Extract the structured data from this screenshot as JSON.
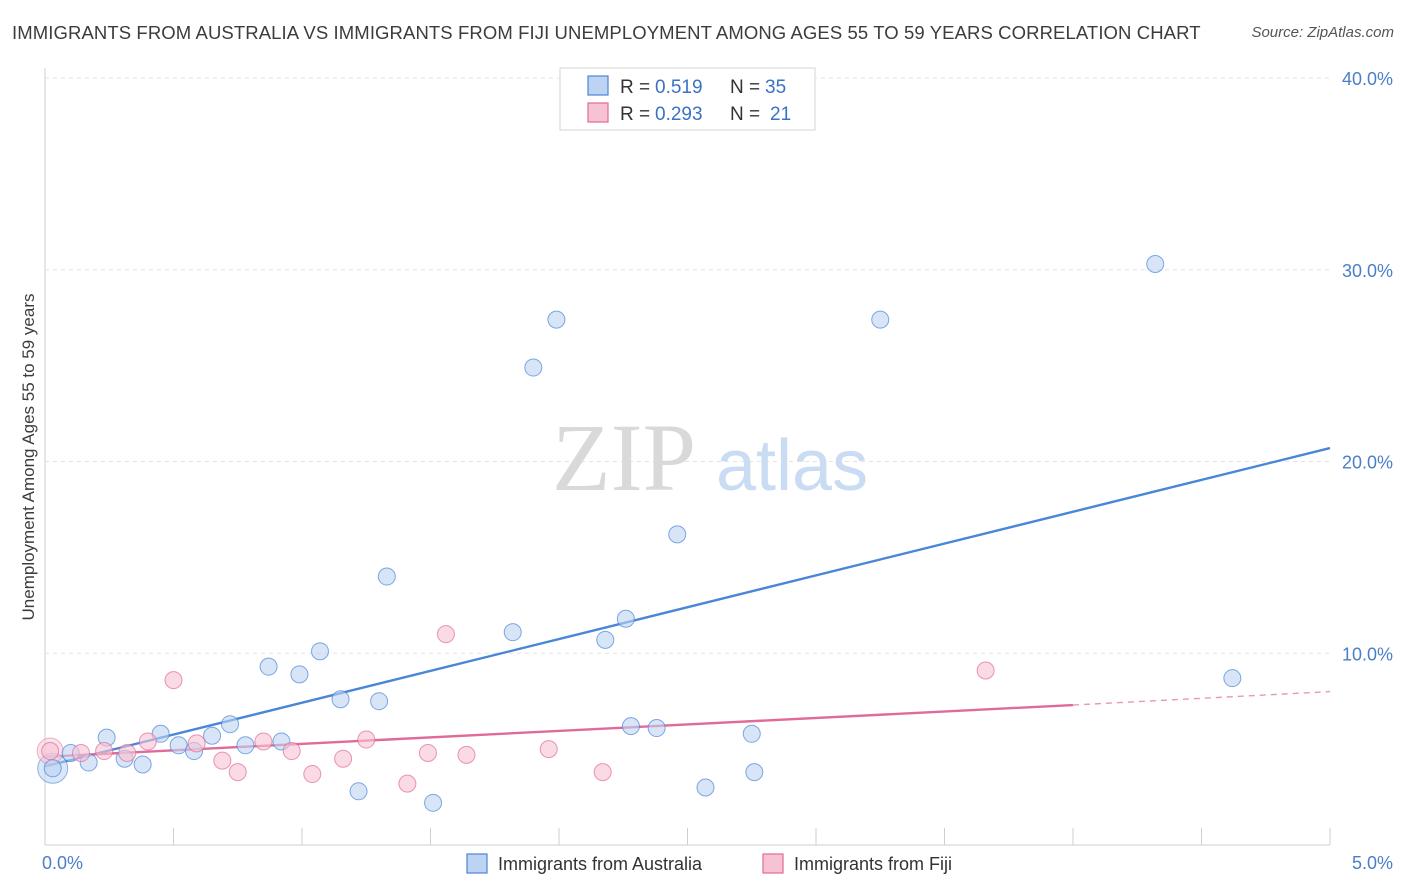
{
  "title": "IMMIGRANTS FROM AUSTRALIA VS IMMIGRANTS FROM FIJI UNEMPLOYMENT AMONG AGES 55 TO 59 YEARS CORRELATION CHART",
  "source": "Source: ZipAtlas.com",
  "watermark": {
    "zip": "ZIP",
    "atlas": "atlas"
  },
  "colors": {
    "australia": "#4a86d8",
    "australia_fill": "#bcd4f2",
    "fiji": "#e06b9a",
    "fiji_fill": "#f7c3d4",
    "tick_text": "#4a7fc8",
    "grid": "#e3e3e3"
  },
  "legend": {
    "rows": [
      {
        "r_label": "R =",
        "r_value": "0.519",
        "n_label": "N =",
        "n_value": "35"
      },
      {
        "r_label": "R =",
        "r_value": "0.293",
        "n_label": "N =",
        "n_value": "21"
      }
    ]
  },
  "bottom_legend": [
    "Immigrants from Australia",
    "Immigrants from Fiji"
  ],
  "chart_data": {
    "type": "scatter",
    "title": "IMMIGRANTS FROM AUSTRALIA VS IMMIGRANTS FROM FIJI UNEMPLOYMENT AMONG AGES 55 TO 59 YEARS CORRELATION CHART",
    "xlabel": "",
    "ylabel": "Unemployment Among Ages 55 to 59 years",
    "xlim": [
      0,
      5
    ],
    "ylim": [
      0,
      40
    ],
    "x_tick_labels": [
      "0.0%",
      "5.0%"
    ],
    "y_ticks": [
      10,
      20,
      30,
      40
    ],
    "y_tick_labels": [
      "10.0%",
      "20.0%",
      "30.0%",
      "40.0%"
    ],
    "series": [
      {
        "name": "Immigrants from Australia",
        "points": [
          [
            0.03,
            4.0
          ],
          [
            0.1,
            4.8
          ],
          [
            0.17,
            4.3
          ],
          [
            0.24,
            5.6
          ],
          [
            0.31,
            4.5
          ],
          [
            0.38,
            4.2
          ],
          [
            0.45,
            5.8
          ],
          [
            0.52,
            5.2
          ],
          [
            0.58,
            4.9
          ],
          [
            0.65,
            5.7
          ],
          [
            0.72,
            6.3
          ],
          [
            0.78,
            5.2
          ],
          [
            0.87,
            9.3
          ],
          [
            0.92,
            5.4
          ],
          [
            0.99,
            8.9
          ],
          [
            1.07,
            10.1
          ],
          [
            1.15,
            7.6
          ],
          [
            1.22,
            2.8
          ],
          [
            1.3,
            7.5
          ],
          [
            1.33,
            14.0
          ],
          [
            1.51,
            2.2
          ],
          [
            1.82,
            11.1
          ],
          [
            1.9,
            24.9
          ],
          [
            1.99,
            27.4
          ],
          [
            2.18,
            10.7
          ],
          [
            2.26,
            11.8
          ],
          [
            2.28,
            6.2
          ],
          [
            2.38,
            6.1
          ],
          [
            2.46,
            16.2
          ],
          [
            2.57,
            3.0
          ],
          [
            2.75,
            5.8
          ],
          [
            2.76,
            3.8
          ],
          [
            3.25,
            27.4
          ],
          [
            4.32,
            30.3
          ],
          [
            4.62,
            8.7
          ]
        ],
        "trend": {
          "x": [
            0.0,
            5.0
          ],
          "y": [
            4.1,
            20.7
          ]
        }
      },
      {
        "name": "Immigrants from Fiji",
        "points": [
          [
            0.02,
            4.9
          ],
          [
            0.14,
            4.8
          ],
          [
            0.23,
            4.9
          ],
          [
            0.32,
            4.8
          ],
          [
            0.4,
            5.4
          ],
          [
            0.5,
            8.6
          ],
          [
            0.59,
            5.3
          ],
          [
            0.69,
            4.4
          ],
          [
            0.75,
            3.8
          ],
          [
            0.85,
            5.4
          ],
          [
            0.96,
            4.9
          ],
          [
            1.04,
            3.7
          ],
          [
            1.16,
            4.5
          ],
          [
            1.25,
            5.5
          ],
          [
            1.41,
            3.2
          ],
          [
            1.49,
            4.8
          ],
          [
            1.56,
            11.0
          ],
          [
            1.64,
            4.7
          ],
          [
            1.96,
            5.0
          ],
          [
            2.17,
            3.8
          ],
          [
            3.66,
            9.1
          ]
        ],
        "trend": {
          "x": [
            0.0,
            4.0
          ],
          "y": [
            4.6,
            7.3
          ]
        },
        "trend_dashed_extension": {
          "x": [
            4.0,
            5.0
          ],
          "y": [
            7.3,
            8.0
          ]
        }
      }
    ]
  }
}
